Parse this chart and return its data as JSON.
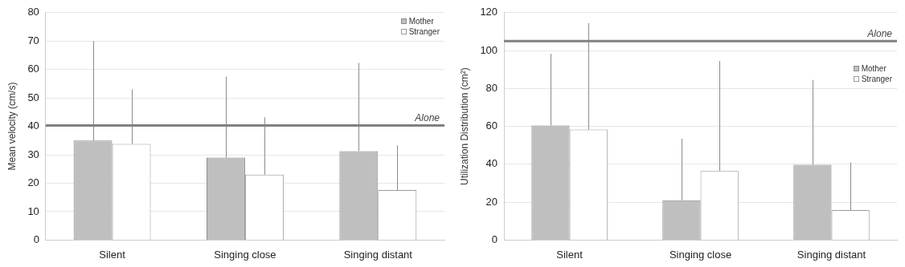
{
  "chart_data": [
    {
      "type": "bar",
      "ylabel": "Mean velocity (cm/s)",
      "categories": [
        "Silent",
        "Singing close",
        "Singing distant"
      ],
      "series": [
        {
          "name": "Mother",
          "color": "#bfbfbf",
          "values": [
            35,
            29,
            31.3
          ],
          "errors": [
            [
              35,
              70
            ],
            [
              29,
              57.5
            ],
            [
              31.3,
              62.3
            ]
          ]
        },
        {
          "name": "Stranger",
          "color": "#ffffff",
          "values": [
            33.8,
            23,
            17.6
          ],
          "errors": [
            [
              33.8,
              53
            ],
            [
              23,
              43.2
            ],
            [
              17.6,
              33.3
            ]
          ]
        }
      ],
      "ylim": [
        0,
        80
      ],
      "yticks": [
        0,
        10,
        20,
        30,
        40,
        50,
        60,
        70,
        80
      ],
      "grid": "y",
      "legend": "top right",
      "ref_lines": [
        {
          "axis": "y",
          "value": 40.3,
          "label": "Alone",
          "color": "#808080"
        }
      ]
    },
    {
      "type": "bar",
      "ylabel": "Utilization Distribution (cm²)",
      "categories": [
        "Silent",
        "Singing close",
        "Singing distant"
      ],
      "series": [
        {
          "name": "Mother",
          "color": "#bfbfbf",
          "values": [
            60.5,
            21,
            39.7
          ],
          "errors": [
            [
              60.5,
              98.3
            ],
            [
              21,
              53.5
            ],
            [
              39.7,
              84.5
            ]
          ]
        },
        {
          "name": "Stranger",
          "color": "#ffffff",
          "values": [
            58.3,
            36.5,
            15.8
          ],
          "errors": [
            [
              58.3,
              114.5
            ],
            [
              36.5,
              94.5
            ],
            [
              15.8,
              41
            ]
          ]
        }
      ],
      "ylim": [
        0,
        120
      ],
      "yticks": [
        0,
        20,
        40,
        60,
        80,
        100,
        120
      ],
      "grid": "y",
      "legend": "top right",
      "ref_lines": [
        {
          "axis": "y",
          "value": 105,
          "label": "Alone",
          "color": "#808080"
        }
      ]
    }
  ]
}
